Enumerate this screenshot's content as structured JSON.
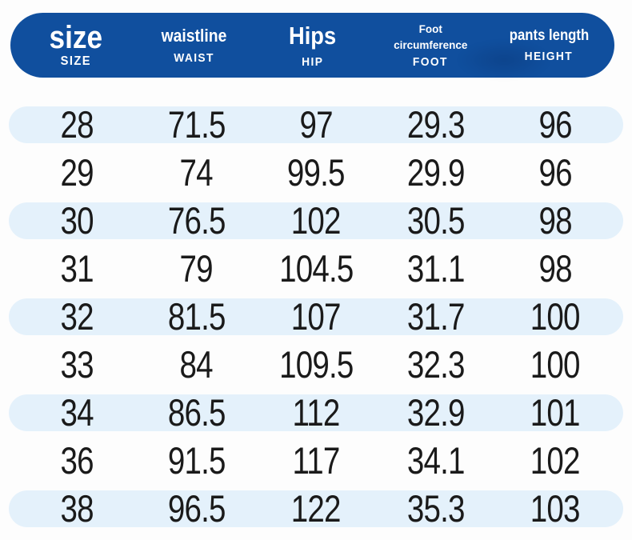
{
  "chart_data": {
    "type": "table",
    "title": "",
    "columns": [
      {
        "label": "size",
        "sublabel": "SIZE"
      },
      {
        "label": "waistline",
        "sublabel": "WAIST"
      },
      {
        "label": "Hips",
        "sublabel": "HIP"
      },
      {
        "label": "Foot circumference",
        "sublabel": "FOOT"
      },
      {
        "label": "pants length",
        "sublabel": "HEIGHT"
      }
    ],
    "rows": [
      [
        "28",
        "71.5",
        "97",
        "29.3",
        "96"
      ],
      [
        "29",
        "74",
        "99.5",
        "29.9",
        "96"
      ],
      [
        "30",
        "76.5",
        "102",
        "30.5",
        "98"
      ],
      [
        "31",
        "79",
        "104.5",
        "31.1",
        "98"
      ],
      [
        "32",
        "81.5",
        "107",
        "31.7",
        "100"
      ],
      [
        "33",
        "84",
        "109.5",
        "32.3",
        "100"
      ],
      [
        "34",
        "86.5",
        "112",
        "32.9",
        "101"
      ],
      [
        "36",
        "91.5",
        "117",
        "34.1",
        "102"
      ],
      [
        "38",
        "96.5",
        "122",
        "35.3",
        "103"
      ]
    ]
  },
  "colors": {
    "header_bg": "#104f9e",
    "header_text": "#ffffff",
    "row_alt_bg": "#e4f1fb",
    "page_bg": "#fdfdfd",
    "text": "#1a1a1a",
    "watermark": "#052458"
  }
}
